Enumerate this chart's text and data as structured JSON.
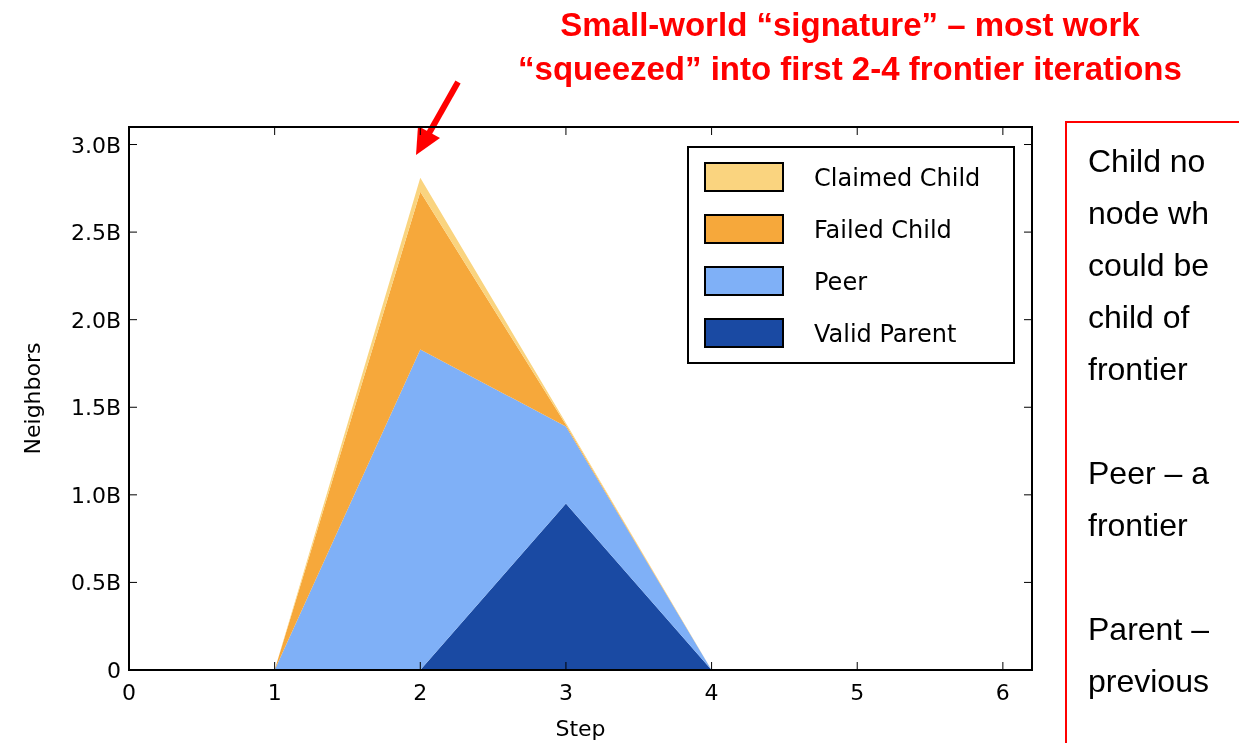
{
  "chart_data": {
    "type": "area",
    "stacked": true,
    "title": "Small-world “signature” – most work\n“squeezed” into first 2-4 frontier iterations",
    "xlabel": "Step",
    "ylabel": "Neighbors",
    "x": [
      0,
      1,
      2,
      3,
      4,
      5,
      6
    ],
    "series": [
      {
        "name": "Valid Parent",
        "color": "#1a4aa3",
        "values": [
          0,
          0,
          0,
          0.95,
          0,
          0,
          0
        ]
      },
      {
        "name": "Peer",
        "color": "#7fb0f7",
        "values": [
          0,
          0,
          1.83,
          0.44,
          0,
          0,
          0
        ]
      },
      {
        "name": "Failed Child",
        "color": "#f6a83b",
        "values": [
          0,
          0,
          0.9,
          0.01,
          0,
          0,
          0
        ]
      },
      {
        "name": "Claimed Child",
        "color": "#fad47f",
        "values": [
          0,
          0,
          0.08,
          0.01,
          0,
          0,
          0
        ]
      }
    ],
    "xlim": [
      0,
      6.2
    ],
    "xticks": [
      0,
      1,
      2,
      3,
      4,
      5,
      6
    ],
    "ylim": [
      0,
      3.1
    ],
    "yticks": [
      0,
      {
        "value": 0.5,
        "label": "0.5B"
      },
      {
        "value": 1,
        "label": "1.0B"
      },
      {
        "value": 1.5,
        "label": "1.5B"
      },
      {
        "value": 2,
        "label": "2.0B"
      },
      {
        "value": 2.5,
        "label": "2.5B"
      },
      {
        "value": 3,
        "label": "3.0B"
      }
    ],
    "legend": "top right",
    "annotations": [
      "Child no",
      "node wh",
      "could be",
      "child of",
      "frontier",
      "Peer – a",
      "frontier",
      "Parent –",
      "previous"
    ]
  }
}
